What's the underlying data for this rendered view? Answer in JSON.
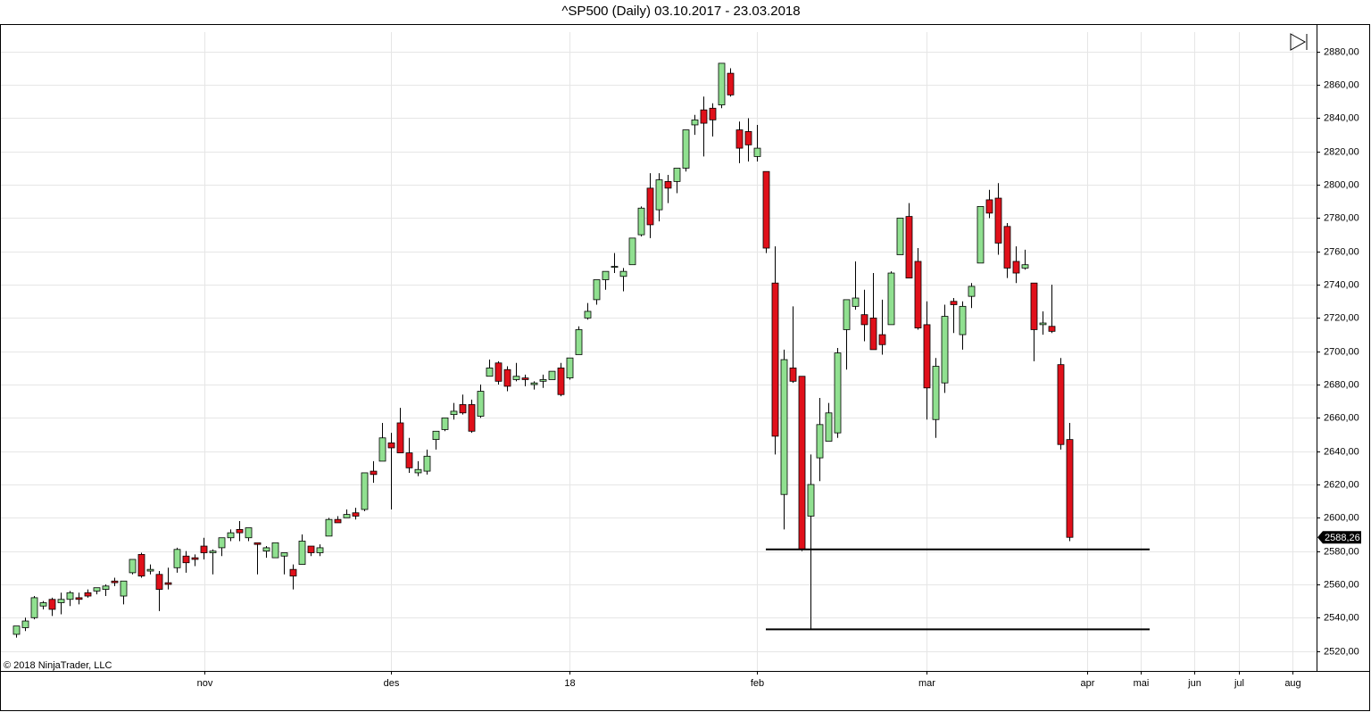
{
  "chart_data": {
    "type": "candlestick",
    "title": "^SP500 (Daily)  03.10.2017 - 23.03.2018",
    "copyright": "© 2018 NinjaTrader, LLC",
    "up_color": "#90e090",
    "down_color": "#e0101a",
    "open": [
      2530,
      2534,
      2540,
      2547,
      2551,
      2549,
      2551,
      2552,
      2555,
      2556,
      2557,
      2562,
      2553,
      2567,
      2578,
      2568,
      2566,
      2561,
      2570,
      2577,
      2576,
      2583,
      2579,
      2582,
      2588,
      2593,
      2588,
      2585,
      2580,
      2576,
      2577,
      2569,
      2572,
      2583,
      2579,
      2589,
      2599,
      2600,
      2603,
      2605,
      2628,
      2634,
      2645,
      2657,
      2639,
      2627,
      2628,
      2647,
      2653,
      2662,
      2668,
      2668,
      2661,
      2685,
      2693,
      2689,
      2683,
      2684,
      2680,
      2682,
      2683,
      2690,
      2684,
      2698,
      2720,
      2731,
      2743,
      2751,
      2745,
      2752,
      2770,
      2798,
      2785,
      2802,
      2802,
      2810,
      2836,
      2845,
      2846,
      2848,
      2867,
      2833,
      2832,
      2817,
      2808,
      2741,
      2614,
      2690,
      2685,
      2601,
      2636,
      2646,
      2651,
      2713,
      2727,
      2722,
      2720,
      2710,
      2716,
      2758,
      2781,
      2754,
      2716,
      2659,
      2681,
      2730,
      2710,
      2733,
      2753,
      2791,
      2792,
      2775,
      2754,
      2750,
      2741,
      2716,
      2715,
      2692,
      2647
    ],
    "high": [
      2535,
      2540,
      2553,
      2550,
      2552,
      2555,
      2556,
      2555,
      2557,
      2558,
      2560,
      2564,
      2562,
      2575,
      2579,
      2572,
      2568,
      2570,
      2582,
      2580,
      2578,
      2588,
      2581,
      2588,
      2593,
      2598,
      2594,
      2585,
      2583,
      2585,
      2579,
      2572,
      2590,
      2583,
      2584,
      2600,
      2601,
      2605,
      2606,
      2627,
      2634,
      2657,
      2651,
      2666,
      2648,
      2634,
      2641,
      2652,
      2660,
      2669,
      2674,
      2671,
      2680,
      2695,
      2694,
      2691,
      2693,
      2686,
      2682,
      2686,
      2688,
      2693,
      2696,
      2715,
      2729,
      2743,
      2748,
      2759,
      2750,
      2768,
      2787,
      2807,
      2807,
      2806,
      2810,
      2833,
      2842,
      2853,
      2849,
      2873,
      2870,
      2838,
      2840,
      2836,
      2808,
      2763,
      2701,
      2727,
      2685,
      2638,
      2672,
      2669,
      2702,
      2731,
      2754,
      2737,
      2747,
      2731,
      2748,
      2780,
      2789,
      2762,
      2730,
      2696,
      2728,
      2732,
      2730,
      2741,
      2787,
      2797,
      2801,
      2777,
      2763,
      2761,
      2741,
      2724,
      2740,
      2696,
      2657
    ],
    "low": [
      2528,
      2532,
      2539,
      2545,
      2541,
      2542,
      2547,
      2548,
      2552,
      2554,
      2553,
      2559,
      2548,
      2566,
      2564,
      2566,
      2544,
      2557,
      2567,
      2567,
      2571,
      2575,
      2566,
      2577,
      2586,
      2586,
      2586,
      2566,
      2576,
      2576,
      2566,
      2557,
      2572,
      2577,
      2577,
      2589,
      2597,
      2600,
      2599,
      2604,
      2621,
      2634,
      2605,
      2639,
      2627,
      2625,
      2626,
      2641,
      2652,
      2659,
      2662,
      2651,
      2660,
      2685,
      2680,
      2676,
      2682,
      2679,
      2677,
      2678,
      2683,
      2673,
      2683,
      2698,
      2719,
      2728,
      2737,
      2747,
      2736,
      2752,
      2769,
      2768,
      2778,
      2789,
      2795,
      2808,
      2830,
      2817,
      2829,
      2846,
      2853,
      2813,
      2814,
      2814,
      2759,
      2638,
      2593,
      2681,
      2580,
      2533,
      2622,
      2646,
      2648,
      2689,
      2725,
      2706,
      2701,
      2698,
      2716,
      2758,
      2744,
      2713,
      2659,
      2648,
      2675,
      2711,
      2701,
      2726,
      2753,
      2780,
      2758,
      2744,
      2741,
      2749,
      2694,
      2710,
      2711,
      2641,
      2586
    ],
    "close": [
      2535,
      2538,
      2552,
      2549,
      2545,
      2551,
      2555,
      2551,
      2553,
      2558,
      2559,
      2561,
      2562,
      2575,
      2565,
      2569,
      2557,
      2560,
      2581,
      2573,
      2575,
      2579,
      2580,
      2588,
      2591,
      2591,
      2594,
      2584,
      2582,
      2585,
      2579,
      2565,
      2586,
      2579,
      2582,
      2599,
      2597,
      2602,
      2601,
      2627,
      2626,
      2648,
      2642,
      2639,
      2630,
      2629,
      2637,
      2652,
      2660,
      2664,
      2663,
      2652,
      2676,
      2690,
      2682,
      2679,
      2685,
      2683,
      2681,
      2683,
      2688,
      2674,
      2696,
      2713,
      2724,
      2743,
      2748,
      2751,
      2748,
      2768,
      2786,
      2776,
      2803,
      2798,
      2810,
      2833,
      2839,
      2837,
      2839,
      2873,
      2854,
      2822,
      2824,
      2822,
      2762,
      2649,
      2695,
      2682,
      2581,
      2620,
      2656,
      2663,
      2699,
      2731,
      2732,
      2716,
      2701,
      2704,
      2747,
      2780,
      2744,
      2714,
      2678,
      2691,
      2721,
      2728,
      2727,
      2739,
      2787,
      2783,
      2765,
      2750,
      2747,
      2752,
      2713,
      2717,
      2712,
      2644,
      2588.26
    ],
    "last_label": "2588,26",
    "hlines": [
      2581,
      2533
    ],
    "xticks": [
      "nov",
      "des",
      "18",
      "feb",
      "mar",
      "apr",
      "mai",
      "jun",
      "jul",
      "aug"
    ],
    "ylim": [
      2508,
      2896
    ],
    "yticks": [
      {
        "value": 2520,
        "label": "2520,00"
      },
      {
        "value": 2540,
        "label": "2540,00"
      },
      {
        "value": 2560,
        "label": "2560,00"
      },
      {
        "value": 2580,
        "label": "2580,00"
      },
      {
        "value": 2600,
        "label": "2600,00"
      },
      {
        "value": 2620,
        "label": "2620,00"
      },
      {
        "value": 2640,
        "label": "2640,00"
      },
      {
        "value": 2660,
        "label": "2660,00"
      },
      {
        "value": 2680,
        "label": "2680,00"
      },
      {
        "value": 2700,
        "label": "2700,00"
      },
      {
        "value": 2720,
        "label": "2720,00"
      },
      {
        "value": 2740,
        "label": "2740,00"
      },
      {
        "value": 2760,
        "label": "2760,00"
      },
      {
        "value": 2780,
        "label": "2780,00"
      },
      {
        "value": 2800,
        "label": "2800,00"
      },
      {
        "value": 2820,
        "label": "2820,00"
      },
      {
        "value": 2840,
        "label": "2840,00"
      },
      {
        "value": 2860,
        "label": "2860,00"
      },
      {
        "value": 2880,
        "label": "2880,00"
      }
    ],
    "grid": true
  }
}
